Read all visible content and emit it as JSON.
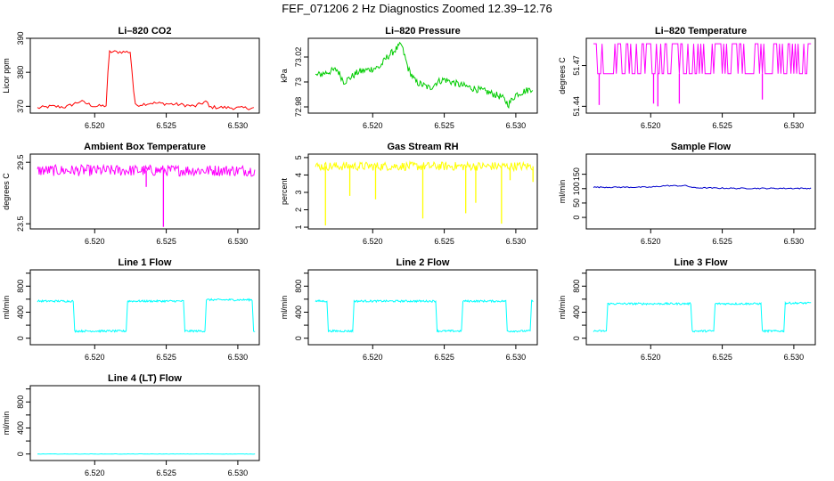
{
  "figure_title": "FEF_071206  2 Hz Diagnostics Zoomed 12.39–12.76",
  "chart_data": [
    {
      "type": "line",
      "title": "Li–820 CO2",
      "ylabel": "Licor ppm",
      "color": "#ff0000",
      "xlim": [
        6.5155,
        6.5315
      ],
      "ylim": [
        368,
        390
      ],
      "yticks": [
        370,
        380,
        390
      ],
      "xticks": [
        6.52,
        6.525,
        6.53
      ],
      "xtick_labels": [
        "6.520",
        "6.525",
        "6.530"
      ],
      "points": [
        [
          6.516,
          369.5
        ],
        [
          6.517,
          370
        ],
        [
          6.518,
          369.8
        ],
        [
          6.519,
          371.5
        ],
        [
          6.52,
          370
        ],
        [
          6.5208,
          370.2
        ],
        [
          6.521,
          386
        ],
        [
          6.5225,
          386
        ],
        [
          6.5228,
          370.3
        ],
        [
          6.524,
          371
        ],
        [
          6.526,
          370.5
        ],
        [
          6.527,
          370
        ],
        [
          6.5278,
          371.5
        ],
        [
          6.528,
          369.8
        ],
        [
          6.53,
          369.5
        ],
        [
          6.5312,
          369.5
        ]
      ],
      "noise": 0.5,
      "noise_step": 0.00012
    },
    {
      "type": "line",
      "title": "Li–820 Pressure",
      "ylabel": "kPa",
      "color": "#00cc00",
      "xlim": [
        6.5155,
        6.5315
      ],
      "ylim": [
        72.975,
        73.035
      ],
      "yticks": [
        72.98,
        73.0,
        73.02
      ],
      "ytick_labels": [
        "72.98",
        "73",
        "73.02"
      ],
      "xticks": [
        6.52,
        6.525,
        6.53
      ],
      "xtick_labels": [
        "6.520",
        "6.525",
        "6.530"
      ],
      "points": [
        [
          6.516,
          73.005
        ],
        [
          6.5175,
          73.01
        ],
        [
          6.518,
          73.0
        ],
        [
          6.519,
          73.008
        ],
        [
          6.5205,
          73.012
        ],
        [
          6.521,
          73.02
        ],
        [
          6.5215,
          73.025
        ],
        [
          6.522,
          73.03
        ],
        [
          6.5225,
          73.01
        ],
        [
          6.523,
          73.0
        ],
        [
          6.524,
          72.995
        ],
        [
          6.5245,
          73.0
        ],
        [
          6.525,
          73.002
        ],
        [
          6.526,
          72.998
        ],
        [
          6.527,
          72.995
        ],
        [
          6.528,
          72.992
        ],
        [
          6.529,
          72.988
        ],
        [
          6.5295,
          72.982
        ],
        [
          6.53,
          72.99
        ],
        [
          6.5312,
          72.995
        ]
      ],
      "noise": 0.0028,
      "noise_step": 6e-05
    },
    {
      "type": "line",
      "title": "Li–820 Temperature",
      "ylabel": "degrees C",
      "color": "#ff00ff",
      "xlim": [
        6.5155,
        6.5315
      ],
      "ylim": [
        51.435,
        51.49
      ],
      "yticks": [
        51.44,
        51.47
      ],
      "ytick_labels": [
        "51.44",
        "51.47"
      ],
      "xticks": [
        6.52,
        6.525,
        6.53
      ],
      "xtick_labels": [
        "6.520",
        "6.525",
        "6.530"
      ],
      "points": [
        [
          6.516,
          51.465
        ],
        [
          6.5312,
          51.465
        ]
      ],
      "noise": 0.0,
      "noise_step": 0.0001,
      "band": [
        51.464,
        51.486
      ],
      "spikes": [
        [
          6.5164,
          51.441
        ],
        [
          6.5202,
          51.442
        ],
        [
          6.5205,
          51.44
        ],
        [
          6.522,
          51.442
        ],
        [
          6.5278,
          51.445
        ]
      ]
    },
    {
      "type": "line",
      "title": "Ambient Box Temperature",
      "ylabel": "degrees C",
      "color": "#ff00ff",
      "xlim": [
        6.5155,
        6.5315
      ],
      "ylim": [
        23.0,
        30.3
      ],
      "yticks": [
        23.5,
        29.5
      ],
      "ytick_labels": [
        "23.5",
        "29.5"
      ],
      "xticks": [
        6.52,
        6.525,
        6.53
      ],
      "xtick_labels": [
        "6.520",
        "6.525",
        "6.530"
      ],
      "points": [
        [
          6.516,
          28.7
        ],
        [
          6.5312,
          28.7
        ]
      ],
      "noise": 0.55,
      "noise_step": 6e-05,
      "spikes": [
        [
          6.5248,
          23.2
        ],
        [
          6.5236,
          27.1
        ]
      ]
    },
    {
      "type": "line",
      "title": "Gas Stream RH",
      "ylabel": "percent",
      "color": "#ffff00",
      "xlim": [
        6.5155,
        6.5315
      ],
      "ylim": [
        0.9,
        5.2
      ],
      "yticks": [
        1,
        2,
        3,
        4,
        5
      ],
      "xticks": [
        6.52,
        6.525,
        6.53
      ],
      "xtick_labels": [
        "6.520",
        "6.525",
        "6.530"
      ],
      "points": [
        [
          6.516,
          4.5
        ],
        [
          6.5312,
          4.5
        ]
      ],
      "noise": 0.25,
      "noise_step": 6e-05,
      "spikes": [
        [
          6.5167,
          1.1
        ],
        [
          6.5184,
          2.8
        ],
        [
          6.5202,
          2.6
        ],
        [
          6.5235,
          1.5
        ],
        [
          6.5265,
          1.8
        ],
        [
          6.5272,
          2.4
        ],
        [
          6.529,
          1.2
        ],
        [
          6.5296,
          3.7
        ],
        [
          6.5312,
          3.6
        ]
      ]
    },
    {
      "type": "line",
      "title": "Sample Flow",
      "ylabel": "ml/min",
      "color": "#0000cc",
      "xlim": [
        6.5155,
        6.5315
      ],
      "ylim": [
        -40,
        220
      ],
      "yticks": [
        0,
        50,
        100,
        150
      ],
      "xticks": [
        6.52,
        6.525,
        6.53
      ],
      "xtick_labels": [
        "6.520",
        "6.525",
        "6.530"
      ],
      "points": [
        [
          6.516,
          105
        ],
        [
          6.52,
          105
        ],
        [
          6.521,
          110
        ],
        [
          6.5225,
          110
        ],
        [
          6.523,
          103
        ],
        [
          6.526,
          101
        ],
        [
          6.5312,
          101
        ]
      ],
      "noise": 2,
      "noise_step": 0.0001
    },
    {
      "type": "line",
      "title": "Line 1 Flow",
      "ylabel": "ml/min",
      "color": "#00ffff",
      "xlim": [
        6.5155,
        6.5315
      ],
      "ylim": [
        -100,
        1050
      ],
      "yticks": [
        0,
        400,
        800
      ],
      "yminor": [
        200,
        600,
        1000
      ],
      "xticks": [
        6.52,
        6.525,
        6.53
      ],
      "xtick_labels": [
        "6.520",
        "6.525",
        "6.530"
      ],
      "points": [
        [
          6.516,
          570
        ],
        [
          6.5185,
          570
        ],
        [
          6.5186,
          110
        ],
        [
          6.5222,
          110
        ],
        [
          6.5223,
          570
        ],
        [
          6.5262,
          570
        ],
        [
          6.5263,
          110
        ],
        [
          6.5277,
          110
        ],
        [
          6.5278,
          590
        ],
        [
          6.531,
          590
        ],
        [
          6.5311,
          110
        ],
        [
          6.5312,
          110
        ]
      ],
      "noise": 15,
      "noise_step": 5e-05
    },
    {
      "type": "line",
      "title": "Line 2 Flow",
      "ylabel": "ml/min",
      "color": "#00ffff",
      "xlim": [
        6.5155,
        6.5315
      ],
      "ylim": [
        -100,
        1050
      ],
      "yticks": [
        0,
        400,
        800
      ],
      "yminor": [
        200,
        600,
        1000
      ],
      "xticks": [
        6.52,
        6.525,
        6.53
      ],
      "xtick_labels": [
        "6.520",
        "6.525",
        "6.530"
      ],
      "points": [
        [
          6.516,
          570
        ],
        [
          6.5168,
          570
        ],
        [
          6.5169,
          110
        ],
        [
          6.5186,
          110
        ],
        [
          6.5187,
          570
        ],
        [
          6.5244,
          570
        ],
        [
          6.5245,
          110
        ],
        [
          6.5262,
          110
        ],
        [
          6.5263,
          570
        ],
        [
          6.5293,
          570
        ],
        [
          6.5294,
          110
        ],
        [
          6.531,
          110
        ],
        [
          6.5311,
          570
        ],
        [
          6.5312,
          570
        ]
      ],
      "noise": 15,
      "noise_step": 5e-05
    },
    {
      "type": "line",
      "title": "Line 3 Flow",
      "ylabel": "ml/min",
      "color": "#00ffff",
      "xlim": [
        6.5155,
        6.5315
      ],
      "ylim": [
        -100,
        1050
      ],
      "yticks": [
        0,
        400,
        800
      ],
      "yminor": [
        200,
        600,
        1000
      ],
      "xticks": [
        6.52,
        6.525,
        6.53
      ],
      "xtick_labels": [
        "6.520",
        "6.525",
        "6.530"
      ],
      "points": [
        [
          6.516,
          110
        ],
        [
          6.5169,
          110
        ],
        [
          6.517,
          530
        ],
        [
          6.5228,
          530
        ],
        [
          6.5229,
          110
        ],
        [
          6.5244,
          110
        ],
        [
          6.5245,
          530
        ],
        [
          6.5277,
          530
        ],
        [
          6.5278,
          110
        ],
        [
          6.5293,
          110
        ],
        [
          6.5294,
          540
        ],
        [
          6.5312,
          540
        ]
      ],
      "noise": 15,
      "noise_step": 5e-05
    },
    {
      "type": "line",
      "title": "Line 4 (LT) Flow",
      "ylabel": "ml/min",
      "color": "#00ffff",
      "xlim": [
        6.5155,
        6.5315
      ],
      "ylim": [
        -100,
        1050
      ],
      "yticks": [
        0,
        400,
        800
      ],
      "yminor": [
        200,
        600,
        1000
      ],
      "xticks": [
        6.52,
        6.525,
        6.53
      ],
      "xtick_labels": [
        "6.520",
        "6.525",
        "6.530"
      ],
      "points": [
        [
          6.516,
          0
        ],
        [
          6.5312,
          0
        ]
      ],
      "noise": 3,
      "noise_step": 0.0001
    }
  ]
}
